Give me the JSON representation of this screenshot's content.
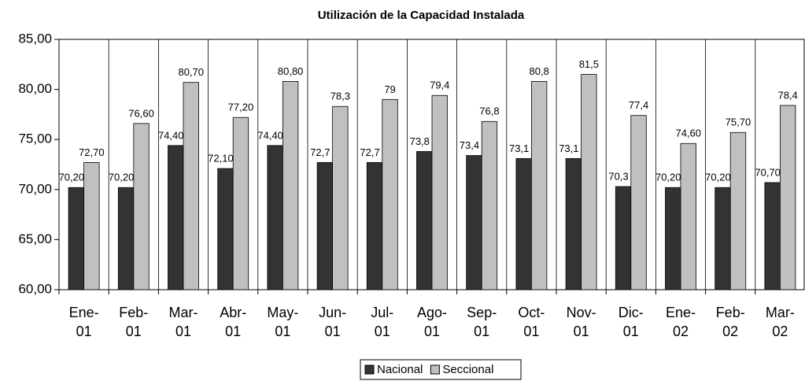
{
  "chart_data": {
    "type": "bar",
    "title": "Utilización de la Capacidad Instalada",
    "categories": [
      "Ene-01",
      "Feb-01",
      "Mar-01",
      "Abr-01",
      "May-01",
      "Jun-01",
      "Jul-01",
      "Ago-01",
      "Sep-01",
      "Oct-01",
      "Nov-01",
      "Dic-01",
      "Ene-02",
      "Feb-02",
      "Mar-02"
    ],
    "series": [
      {
        "name": "Nacional",
        "color": "#333333",
        "values": [
          70.2,
          70.2,
          74.4,
          72.1,
          74.4,
          72.7,
          72.7,
          73.8,
          73.4,
          73.1,
          73.1,
          70.3,
          70.2,
          70.2,
          70.7
        ],
        "value_labels": [
          "70,20",
          "70,20",
          "74,40",
          "72,10",
          "74,40",
          "72,7",
          "72,7",
          "73,8",
          "73,4",
          "73,1",
          "73,1",
          "70,3",
          "70,20",
          "70,20",
          "70,70"
        ]
      },
      {
        "name": "Seccional",
        "color": "#c0c0c0",
        "values": [
          72.7,
          76.6,
          80.7,
          77.2,
          80.8,
          78.3,
          79,
          79.4,
          76.8,
          80.8,
          81.5,
          77.4,
          74.6,
          75.7,
          78.4
        ],
        "value_labels": [
          "72,70",
          "76,60",
          "80,70",
          "77,20",
          "80,80",
          "78,3",
          "79",
          "79,4",
          "76,8",
          "80,8",
          "81,5",
          "77,4",
          "74,60",
          "75,70",
          "78,4"
        ]
      }
    ],
    "ylim": [
      60,
      85
    ],
    "yticks": [
      {
        "value": 60,
        "label": "60,00"
      },
      {
        "value": 65,
        "label": "65,00"
      },
      {
        "value": 70,
        "label": "70,00"
      },
      {
        "value": 75,
        "label": "75,00"
      },
      {
        "value": 80,
        "label": "80,00"
      },
      {
        "value": 85,
        "label": "85,00"
      }
    ],
    "legend": "bottom"
  }
}
